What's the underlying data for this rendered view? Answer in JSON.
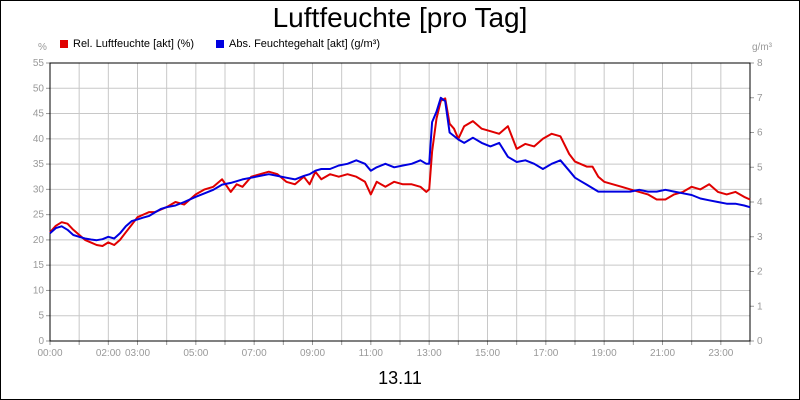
{
  "chart_data": {
    "type": "line",
    "title": "Luftfeuchte [pro Tag]",
    "date_label": "13.11",
    "left_unit": "%",
    "right_unit": "g/m³",
    "ylim_left": [
      0,
      55
    ],
    "ylim_right": [
      0,
      8
    ],
    "xlim_hours": [
      0,
      24
    ],
    "y_ticks_left": [
      "0",
      "5",
      "10",
      "15",
      "20",
      "25",
      "30",
      "35",
      "40",
      "45",
      "50",
      "55"
    ],
    "y_ticks_right": [
      "0",
      "1",
      "2",
      "3",
      "4",
      "5",
      "6",
      "7",
      "8"
    ],
    "x_ticks": [
      {
        "h": 0,
        "label": "00:00"
      },
      {
        "h": 2,
        "label": "02:00"
      },
      {
        "h": 3,
        "label": "03:00"
      },
      {
        "h": 5,
        "label": "05:00"
      },
      {
        "h": 7,
        "label": "07:00"
      },
      {
        "h": 9,
        "label": "09:00"
      },
      {
        "h": 11,
        "label": "11:00"
      },
      {
        "h": 13,
        "label": "13:00"
      },
      {
        "h": 15,
        "label": "15:00"
      },
      {
        "h": 17,
        "label": "17:00"
      },
      {
        "h": 19,
        "label": "19:00"
      },
      {
        "h": 21,
        "label": "21:00"
      },
      {
        "h": 23,
        "label": "23:00"
      }
    ],
    "grid": true,
    "series": [
      {
        "name": "Rel. Luftfeuchte [akt] (%)",
        "color": "#e00000",
        "axis": "left",
        "x": [
          0,
          0.2,
          0.4,
          0.6,
          0.8,
          1.0,
          1.2,
          1.4,
          1.6,
          1.8,
          2.0,
          2.2,
          2.4,
          2.6,
          2.8,
          3.0,
          3.2,
          3.4,
          3.6,
          3.8,
          4.0,
          4.3,
          4.6,
          5.0,
          5.3,
          5.6,
          5.9,
          6.2,
          6.4,
          6.6,
          6.9,
          7.2,
          7.5,
          7.8,
          8.1,
          8.4,
          8.7,
          8.9,
          9.1,
          9.3,
          9.6,
          9.9,
          10.2,
          10.5,
          10.8,
          11.0,
          11.2,
          11.5,
          11.8,
          12.1,
          12.4,
          12.7,
          12.9,
          13.0,
          13.1,
          13.25,
          13.4,
          13.55,
          13.7,
          13.85,
          14.0,
          14.2,
          14.5,
          14.8,
          15.1,
          15.4,
          15.7,
          16.0,
          16.3,
          16.6,
          16.9,
          17.2,
          17.5,
          17.8,
          18.0,
          18.2,
          18.4,
          18.6,
          18.8,
          19.0,
          19.3,
          19.6,
          19.9,
          20.2,
          20.5,
          20.8,
          21.1,
          21.4,
          21.7,
          22.0,
          22.3,
          22.6,
          22.9,
          23.2,
          23.5,
          23.8,
          24.0
        ],
        "values": [
          21.5,
          22.8,
          23.5,
          23.2,
          22.0,
          21.0,
          20.0,
          19.5,
          19.0,
          18.8,
          19.5,
          19.0,
          20.0,
          21.5,
          23.0,
          24.5,
          25.0,
          25.5,
          25.5,
          26.0,
          26.5,
          27.5,
          27.0,
          29.0,
          30.0,
          30.5,
          32.0,
          29.5,
          31.0,
          30.5,
          32.5,
          33.0,
          33.5,
          33.0,
          31.5,
          31.0,
          32.5,
          31.0,
          33.5,
          32.0,
          33.0,
          32.5,
          33.0,
          32.5,
          31.5,
          29.0,
          31.5,
          30.5,
          31.5,
          31.0,
          31.0,
          30.5,
          29.5,
          30.0,
          37.5,
          44.0,
          47.5,
          48.0,
          43.0,
          42.0,
          40.0,
          42.5,
          43.5,
          42.0,
          41.5,
          41.0,
          42.5,
          38.0,
          39.0,
          38.5,
          40.0,
          41.0,
          40.5,
          37.0,
          35.5,
          35.0,
          34.5,
          34.5,
          32.5,
          31.5,
          31.0,
          30.5,
          30.0,
          29.5,
          29.0,
          28.0,
          28.0,
          29.0,
          29.5,
          30.5,
          30.0,
          31.0,
          29.5,
          29.0,
          29.5,
          28.5,
          28.0
        ]
      },
      {
        "name": "Abs. Feuchtegehalt [akt] (g/m³)",
        "color": "#0000e0",
        "axis": "right",
        "x": [
          0,
          0.2,
          0.4,
          0.6,
          0.8,
          1.0,
          1.2,
          1.4,
          1.6,
          1.8,
          2.0,
          2.2,
          2.4,
          2.6,
          2.8,
          3.0,
          3.2,
          3.4,
          3.6,
          3.8,
          4.0,
          4.3,
          4.6,
          5.0,
          5.3,
          5.6,
          5.9,
          6.2,
          6.4,
          6.6,
          6.9,
          7.2,
          7.5,
          7.8,
          8.1,
          8.4,
          8.7,
          8.9,
          9.1,
          9.3,
          9.6,
          9.9,
          10.2,
          10.5,
          10.8,
          11.0,
          11.2,
          11.5,
          11.8,
          12.1,
          12.4,
          12.7,
          12.9,
          13.0,
          13.1,
          13.25,
          13.4,
          13.55,
          13.7,
          13.85,
          14.0,
          14.2,
          14.5,
          14.8,
          15.1,
          15.4,
          15.7,
          16.0,
          16.3,
          16.6,
          16.9,
          17.2,
          17.5,
          17.8,
          18.0,
          18.2,
          18.4,
          18.6,
          18.8,
          19.0,
          19.3,
          19.6,
          19.9,
          20.2,
          20.5,
          20.8,
          21.1,
          21.4,
          21.7,
          22.0,
          22.3,
          22.6,
          22.9,
          23.2,
          23.5,
          23.8,
          24.0
        ],
        "values": [
          3.1,
          3.25,
          3.3,
          3.2,
          3.05,
          3.0,
          2.95,
          2.92,
          2.9,
          2.93,
          3.0,
          2.95,
          3.1,
          3.3,
          3.45,
          3.5,
          3.55,
          3.6,
          3.7,
          3.8,
          3.85,
          3.9,
          4.0,
          4.15,
          4.25,
          4.35,
          4.5,
          4.55,
          4.6,
          4.65,
          4.7,
          4.75,
          4.8,
          4.75,
          4.7,
          4.65,
          4.75,
          4.8,
          4.9,
          4.95,
          4.95,
          5.05,
          5.1,
          5.2,
          5.1,
          4.9,
          5.0,
          5.1,
          5.0,
          5.05,
          5.1,
          5.2,
          5.1,
          5.1,
          6.3,
          6.6,
          7.0,
          6.9,
          6.0,
          5.9,
          5.8,
          5.7,
          5.85,
          5.7,
          5.6,
          5.7,
          5.3,
          5.15,
          5.2,
          5.1,
          4.95,
          5.1,
          5.2,
          4.9,
          4.7,
          4.6,
          4.5,
          4.4,
          4.3,
          4.3,
          4.3,
          4.3,
          4.3,
          4.35,
          4.3,
          4.3,
          4.35,
          4.3,
          4.25,
          4.2,
          4.1,
          4.05,
          4.0,
          3.95,
          3.95,
          3.9,
          3.85
        ]
      }
    ]
  }
}
